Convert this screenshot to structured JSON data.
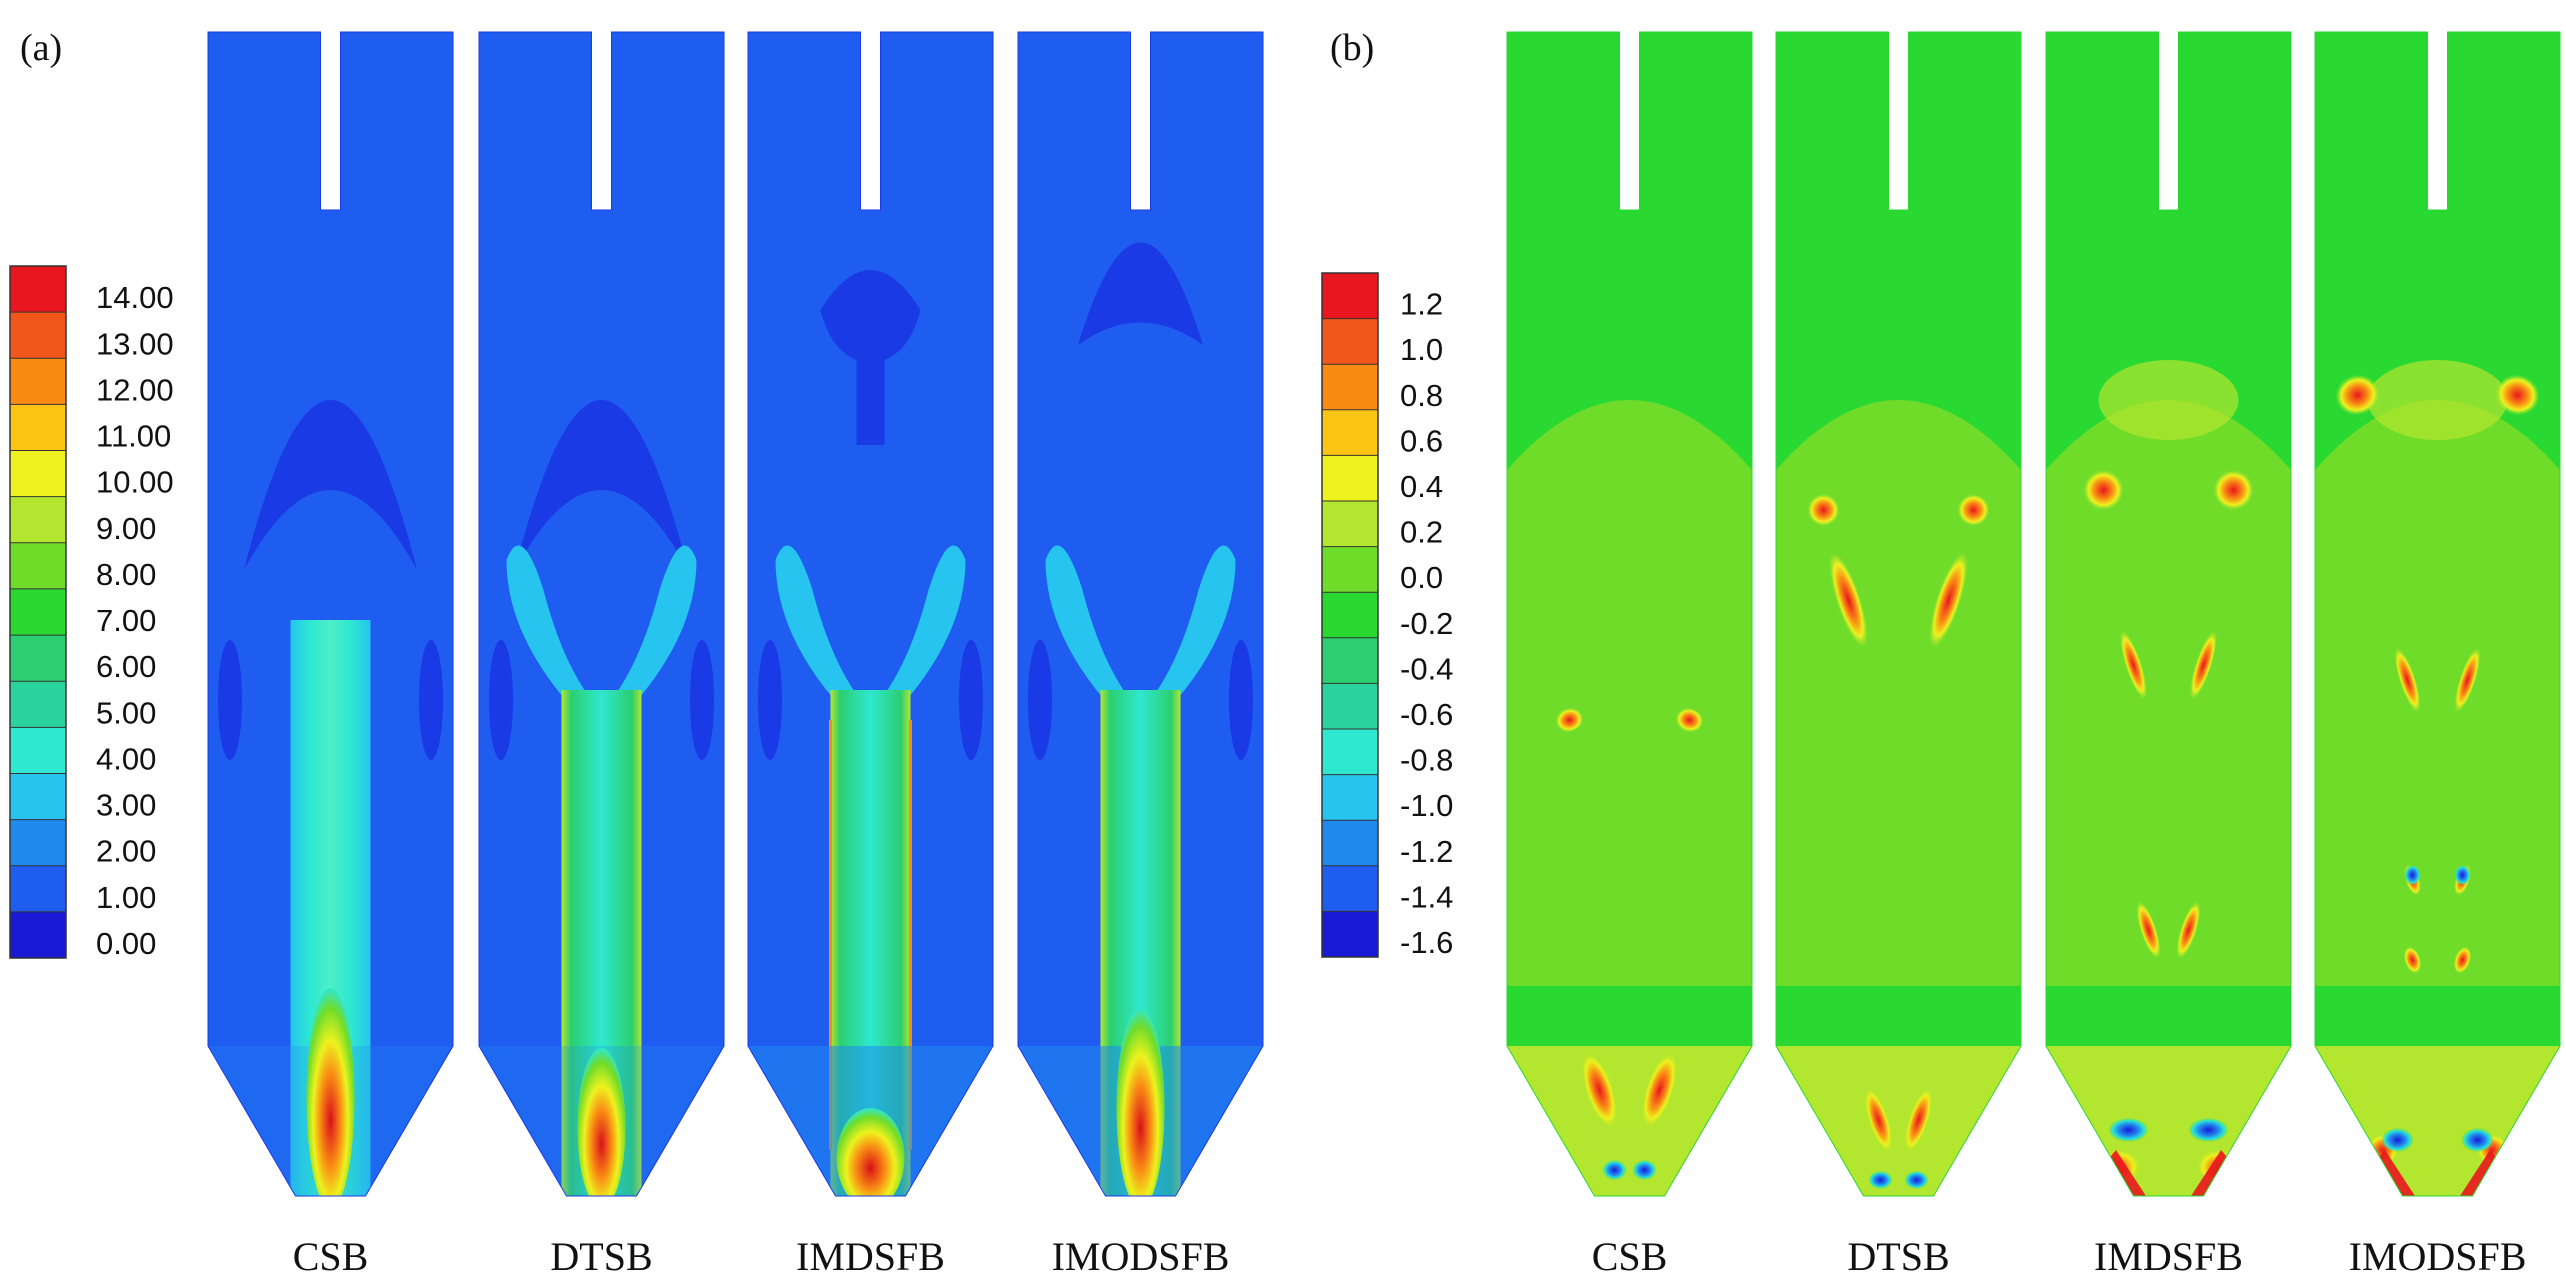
{
  "panels": [
    {
      "label": "(a)",
      "scale": {
        "ticks": [
          "14.00",
          "13.00",
          "12.00",
          "11.00",
          "10.00",
          "9.00",
          "8.00",
          "7.00",
          "6.00",
          "5.00",
          "4.00",
          "3.00",
          "2.00",
          "1.00",
          "0.00"
        ],
        "colors": [
          "#e8161e",
          "#f2561a",
          "#f98a14",
          "#fcc414",
          "#eef21e",
          "#b3e62e",
          "#6fdc2a",
          "#2ad832",
          "#2ccf6f",
          "#2bd39c",
          "#2ee8d0",
          "#26c4ee",
          "#1f8aee",
          "#1f5cf0",
          "#1a1ad6"
        ]
      },
      "cases": [
        "CSB",
        "DTSB",
        "IMDSFB",
        "IMODSFB"
      ]
    },
    {
      "label": "(b)",
      "scale": {
        "ticks": [
          "1.2",
          "1.0",
          "0.8",
          "0.6",
          "0.4",
          "0.2",
          "0.0",
          "-0.2",
          "-0.4",
          "-0.6",
          "-0.8",
          "-1.0",
          "-1.2",
          "-1.4",
          "-1.6"
        ],
        "colors": [
          "#e8161e",
          "#f2561a",
          "#f98a14",
          "#fcc414",
          "#eef21e",
          "#b3e62e",
          "#6fdc2a",
          "#2ad832",
          "#2ccf6f",
          "#2bd39c",
          "#2ee8d0",
          "#26c4ee",
          "#1f8aee",
          "#1f5cf0",
          "#1a1ad6"
        ]
      },
      "cases": [
        "CSB",
        "DTSB",
        "IMDSFB",
        "IMODSFB"
      ]
    }
  ],
  "colors": {
    "vel_background": "#1f5cf0",
    "vel_low": "#1a3ae6",
    "vel_mid": "#2ee8d0",
    "vel_high": "#e8161e",
    "vort_background": "#6fdc2a",
    "vort_light": "#b3e62e",
    "vort_pos": "#e8161e",
    "vort_neg": "#1a1ad6"
  }
}
